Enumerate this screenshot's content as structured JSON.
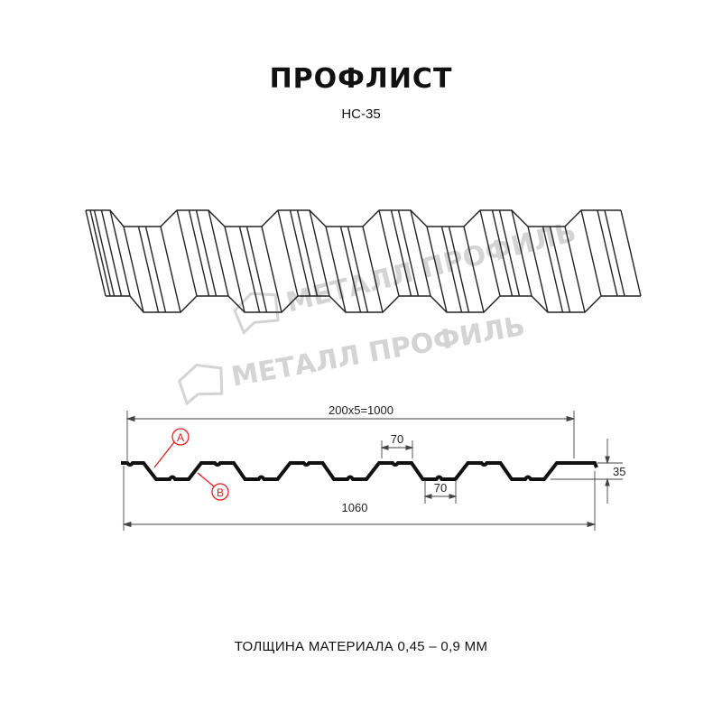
{
  "title": "ПРОФЛИСТ",
  "subtitle": "НС-35",
  "watermark": "МЕТАЛЛ ПРОФИЛЬ",
  "dimensions": {
    "pitch_total": "200x5=1000",
    "top_flat": "70",
    "bottom_flat": "70",
    "overall_width": "1060",
    "height": "35"
  },
  "callouts": {
    "a": "A",
    "b": "B",
    "color": "#e0201e"
  },
  "footer": "ТОЛЩИНА МАТЕРИАЛА 0,45 – 0,9 ММ"
}
